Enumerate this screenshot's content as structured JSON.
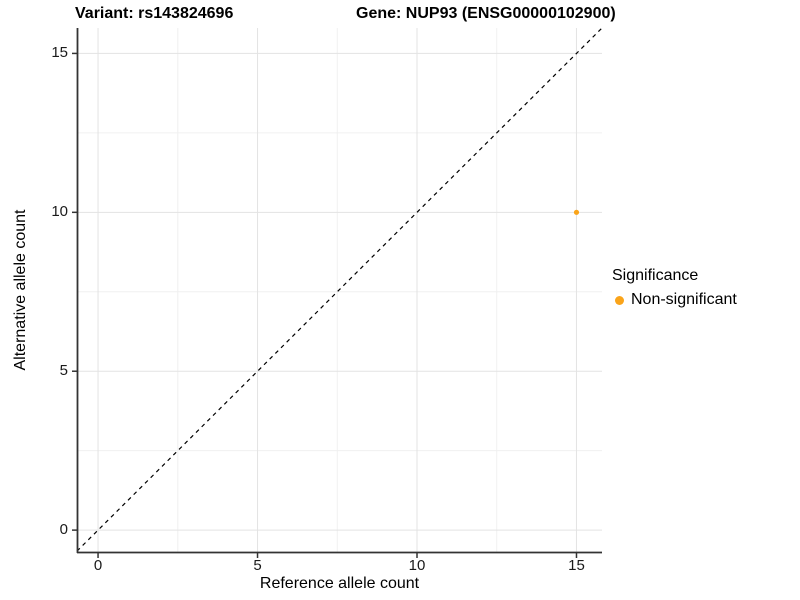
{
  "title": {
    "variant": "Variant: rs143824696",
    "gene": "Gene: NUP93 (ENSG00000102900)"
  },
  "chart_data": {
    "type": "scatter",
    "title": "Variant: rs143824696   Gene: NUP93 (ENSG00000102900)",
    "xlabel": "Reference allele count",
    "ylabel": "Alternative allele count",
    "xlim": [
      -0.66,
      15.8
    ],
    "ylim": [
      -0.72,
      15.8
    ],
    "x_ticks": [
      0,
      5,
      10,
      15
    ],
    "y_ticks": [
      0,
      5,
      10,
      15
    ],
    "x_minor_ticks": [
      2.5,
      7.5,
      12.5
    ],
    "y_minor_ticks": [
      2.5,
      7.5,
      12.5
    ],
    "grid": true,
    "series": [
      {
        "name": "Non-significant",
        "color": "#FAA41A",
        "points": [
          {
            "x": 15,
            "y": 10
          }
        ]
      }
    ],
    "identity_line": {
      "slope": 1,
      "intercept": 0,
      "style": "dashed",
      "color": "#000000"
    },
    "legend": {
      "title": "Significance",
      "position": "right",
      "entries": [
        {
          "label": "Non-significant",
          "color": "#FAA41A"
        }
      ]
    }
  },
  "colors": {
    "background": "#ffffff",
    "grid_major": "#e3e3e3",
    "grid_minor": "#f0f0f0",
    "axis_line": "#333333",
    "point": "#FAA41A",
    "dashed_line": "#000000"
  }
}
